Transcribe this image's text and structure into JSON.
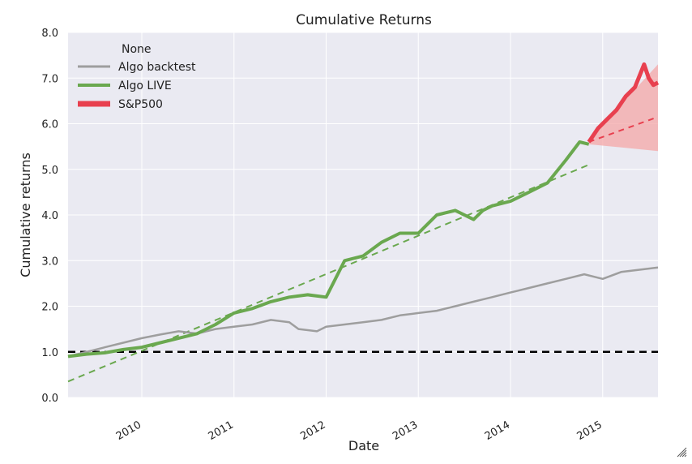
{
  "chart_data": {
    "type": "line",
    "title": "Cumulative Returns",
    "xlabel": "Date",
    "ylabel": "Cumulative returns",
    "xlim": [
      2009.2,
      2015.6
    ],
    "ylim": [
      0.0,
      8.0
    ],
    "yticks": [
      0.0,
      1.0,
      2.0,
      3.0,
      4.0,
      5.0,
      6.0,
      7.0,
      8.0
    ],
    "ytick_labels": [
      "0.0",
      "1.0",
      "2.0",
      "3.0",
      "4.0",
      "5.0",
      "6.0",
      "7.0",
      "8.0"
    ],
    "xticks": [
      2010,
      2011,
      2012,
      2013,
      2014,
      2015
    ],
    "xtick_labels": [
      "2010",
      "2011",
      "2012",
      "2013",
      "2014",
      "2015"
    ],
    "grid": true,
    "legend": {
      "title": "None",
      "position": "top-left",
      "entries": [
        "Algo backtest",
        "Algo LIVE",
        "S&P500"
      ]
    },
    "colors": {
      "background": "#eaeaf2",
      "grid": "#ffffff",
      "backtest": "#9e9e9e",
      "live": "#6aa84f",
      "sp500": "#e8404f",
      "cone": "#f4a7a7",
      "baseline": "#000000",
      "trend": "#6aa84f"
    },
    "series": [
      {
        "name": "Algo backtest",
        "x": [
          2009.2,
          2009.4,
          2009.6,
          2009.8,
          2010.0,
          2010.2,
          2010.4,
          2010.6,
          2010.8,
          2011.0,
          2011.2,
          2011.4,
          2011.6,
          2011.7,
          2011.9,
          2012.0,
          2012.2,
          2012.4,
          2012.6,
          2012.8,
          2013.0,
          2013.2,
          2013.4,
          2013.6,
          2013.8,
          2014.0,
          2014.2,
          2014.4,
          2014.6,
          2014.8,
          2015.0,
          2015.2,
          2015.4,
          2015.6
        ],
        "values": [
          0.9,
          1.0,
          1.1,
          1.2,
          1.3,
          1.38,
          1.45,
          1.4,
          1.5,
          1.55,
          1.6,
          1.7,
          1.65,
          1.5,
          1.45,
          1.55,
          1.6,
          1.65,
          1.7,
          1.8,
          1.85,
          1.9,
          2.0,
          2.1,
          2.2,
          2.3,
          2.4,
          2.5,
          2.6,
          2.7,
          2.6,
          2.75,
          2.8,
          2.85
        ]
      },
      {
        "name": "Algo LIVE",
        "x": [
          2009.2,
          2009.4,
          2009.6,
          2009.8,
          2010.0,
          2010.2,
          2010.4,
          2010.6,
          2010.8,
          2011.0,
          2011.2,
          2011.4,
          2011.6,
          2011.8,
          2012.0,
          2012.1,
          2012.2,
          2012.4,
          2012.6,
          2012.8,
          2013.0,
          2013.1,
          2013.2,
          2013.4,
          2013.6,
          2013.7,
          2013.8,
          2014.0,
          2014.2,
          2014.4,
          2014.6,
          2014.75,
          2014.85
        ],
        "values": [
          0.9,
          0.95,
          0.98,
          1.05,
          1.1,
          1.2,
          1.3,
          1.4,
          1.6,
          1.85,
          1.95,
          2.1,
          2.2,
          2.25,
          2.2,
          2.6,
          3.0,
          3.1,
          3.4,
          3.6,
          3.6,
          3.8,
          4.0,
          4.1,
          3.9,
          4.1,
          4.2,
          4.3,
          4.5,
          4.7,
          5.2,
          5.6,
          5.55
        ]
      },
      {
        "name": "S&P500",
        "x": [
          2014.85,
          2014.95,
          2015.05,
          2015.15,
          2015.25,
          2015.35,
          2015.45,
          2015.5,
          2015.55,
          2015.6
        ],
        "values": [
          5.6,
          5.9,
          6.1,
          6.3,
          6.6,
          6.8,
          7.3,
          7.0,
          6.85,
          6.9
        ]
      }
    ],
    "trend_line": {
      "x": [
        2009.2,
        2014.85
      ],
      "values": [
        0.35,
        5.1
      ]
    },
    "forecast_line": {
      "x": [
        2014.85,
        2015.6
      ],
      "values": [
        5.6,
        6.15
      ]
    },
    "cone": {
      "x": [
        2014.85,
        2015.6
      ],
      "upper": [
        5.65,
        7.3
      ],
      "lower": [
        5.55,
        5.4
      ]
    },
    "baseline_value": 1.0
  }
}
